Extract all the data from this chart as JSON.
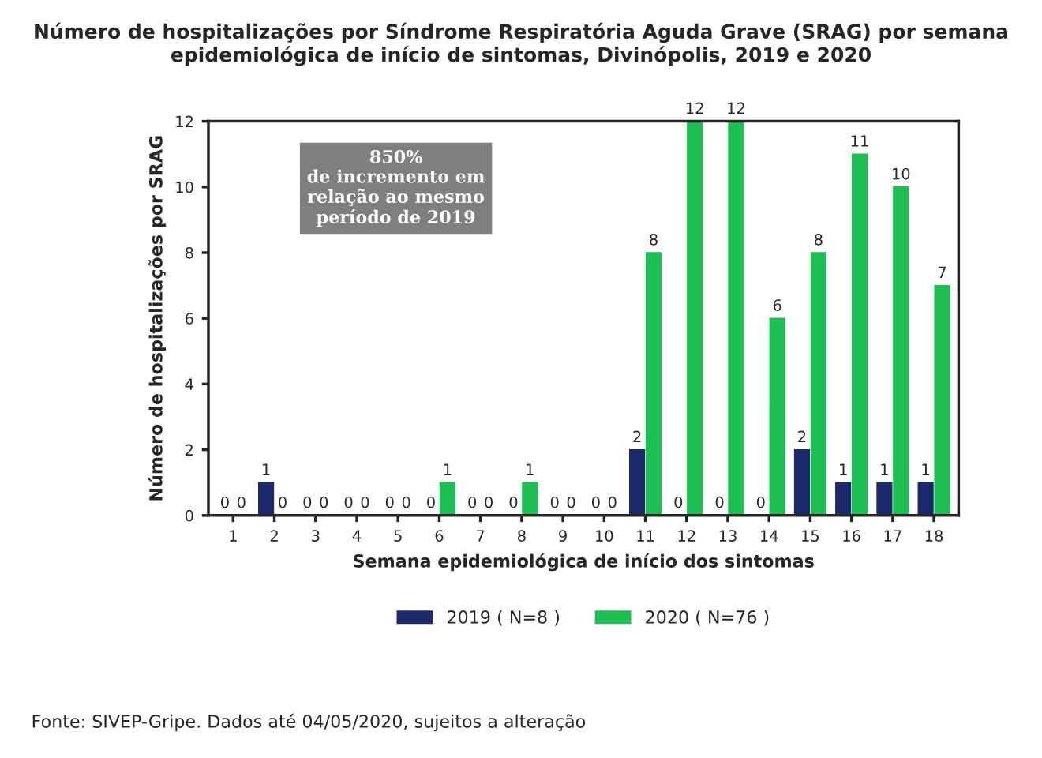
{
  "chart_data": {
    "type": "bar",
    "title": "Número de hospitalizações por Síndrome Respiratória Aguda Grave (SRAG) por semana epidemiológica de início de sintomas, Divinópolis, 2019 e 2020",
    "xlabel": "Semana epidemiológica de início dos sintomas",
    "ylabel": "Número de hospitalizações por SRAG",
    "categories": [
      "1",
      "2",
      "3",
      "4",
      "5",
      "6",
      "7",
      "8",
      "9",
      "10",
      "11",
      "12",
      "13",
      "14",
      "15",
      "16",
      "17",
      "18"
    ],
    "series": [
      {
        "name": "2019 ( N=8 )",
        "color": "#1c2a6b",
        "values": [
          0,
          1,
          0,
          0,
          0,
          0,
          0,
          0,
          0,
          0,
          2,
          0,
          0,
          0,
          2,
          1,
          1,
          1
        ]
      },
      {
        "name": "2020 ( N=76 )",
        "color": "#1dbf52",
        "values": [
          0,
          0,
          0,
          0,
          0,
          1,
          0,
          1,
          0,
          0,
          8,
          12,
          12,
          6,
          8,
          11,
          10,
          7
        ]
      }
    ],
    "ylim": [
      0,
      12
    ],
    "yticks": [
      0,
      2,
      4,
      6,
      8,
      10,
      12
    ],
    "data_labels": true,
    "grid": false,
    "legend": "bottom",
    "annotations": [
      "850%\nde incremento em\nrelação ao mesmo\nperíodo de 2019",
      "Fonte: SIVEP-Gripe. Dados até 04/05/2020, sujeitos a alteração"
    ]
  }
}
